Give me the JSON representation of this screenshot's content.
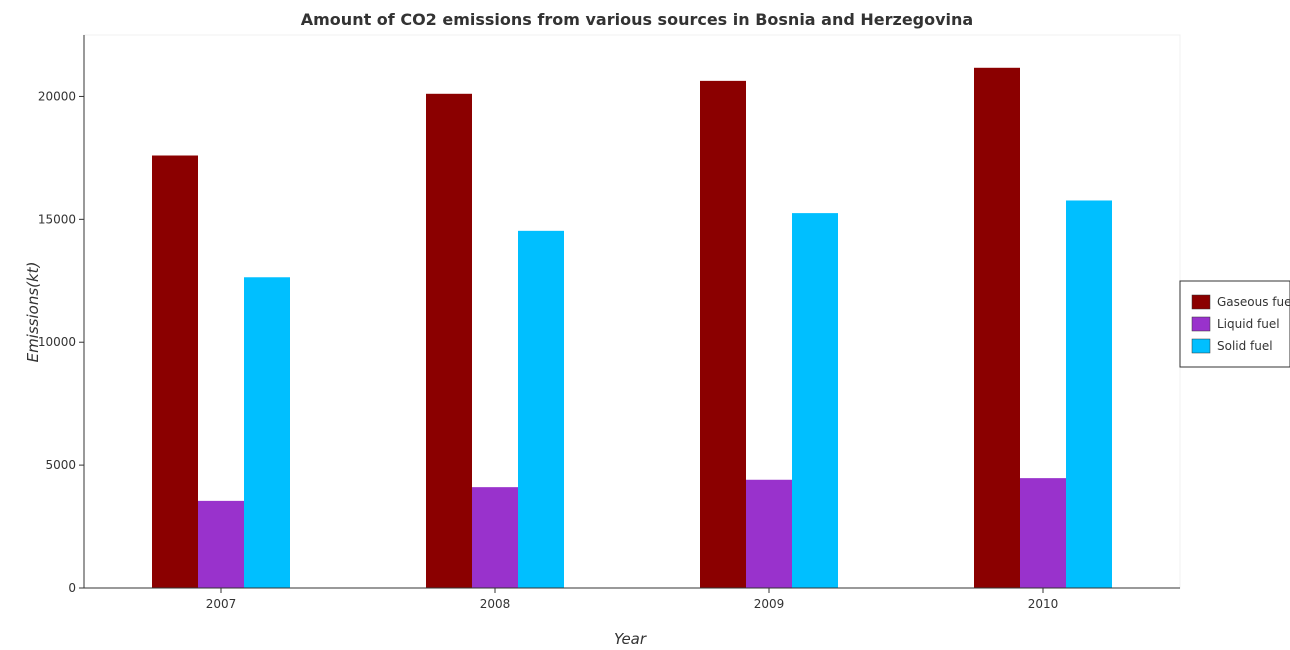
{
  "chart_data": {
    "type": "bar",
    "title": "Amount of CO2 emissions from various sources in Bosnia and Herzegovina",
    "xlabel": "Year",
    "ylabel": "Emissions(kt)",
    "categories": [
      "2007",
      "2008",
      "2009",
      "2010"
    ],
    "series": [
      {
        "name": "Gaseous fuel",
        "color": "#8b0000",
        "values": [
          17597,
          20108,
          20634,
          21166
        ]
      },
      {
        "name": "Liquid fuel",
        "color": "#9932cc",
        "values": [
          3545,
          4103,
          4404,
          4470
        ]
      },
      {
        "name": "Solid fuel",
        "color": "#00bfff",
        "values": [
          12643,
          14532,
          15253,
          15767
        ]
      }
    ],
    "ylim": [
      0,
      22500
    ],
    "yticks": [
      0,
      5000,
      10000,
      15000,
      20000
    ],
    "ytick_labels": [
      "0",
      "5000",
      "10000",
      "15000",
      "20000"
    ],
    "grid": false,
    "legend_position": "right"
  }
}
